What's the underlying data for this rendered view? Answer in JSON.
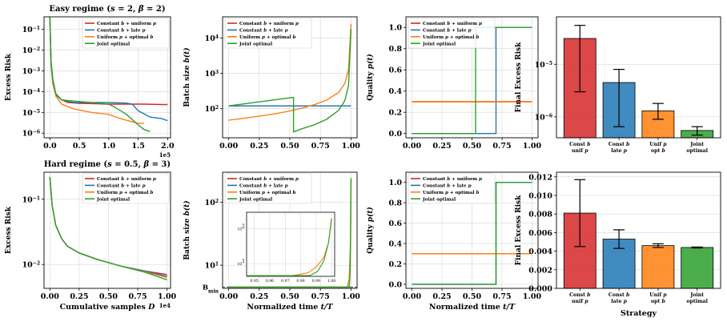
{
  "chart_data": [
    {
      "type": "line",
      "title": "Easy regime ($s=2$, $\\beta=2$)",
      "title_parts": [
        {
          "t": "Easy regime ("
        },
        {
          "t": "s",
          "i": true
        },
        {
          "t": " = 2, "
        },
        {
          "t": "β",
          "i": true
        },
        {
          "t": " = 2)"
        }
      ],
      "ylabel": "Excess Risk",
      "xlabel": "",
      "xlim": [
        -0.1,
        2.05
      ],
      "ylim": [
        6e-07,
        0.4
      ],
      "yscale": "log",
      "xticks": [
        0,
        0.5,
        1.0,
        1.5,
        2.0
      ],
      "xticklabels": [
        "0.0",
        "0.5",
        "1.0",
        "1.5",
        "2.0"
      ],
      "yticks": [
        1e-06,
        1e-05,
        0.0001,
        0.001,
        0.01,
        0.1
      ],
      "yticklabels": [
        "10^-6",
        "10^-5",
        "10^-4",
        "10^-3",
        "10^-2",
        "10^-1"
      ],
      "x_offset_label": "1e5",
      "legend_loc": "upper right",
      "series": [
        {
          "name": "Constant $b$ + uniform $p$",
          "color": "#d62728",
          "x": [
            0,
            0.02,
            0.05,
            0.1,
            0.2,
            0.3,
            0.5,
            0.8,
            1.0,
            1.3,
            1.6,
            1.9,
            2.0
          ],
          "values": [
            0.4,
            0.002,
            0.00025,
            7e-05,
            4e-05,
            3e-05,
            2.7e-05,
            2.6e-05,
            2.5e-05,
            2.5e-05,
            2.5e-05,
            2.4e-05,
            2.4e-05
          ]
        },
        {
          "name": "Constant $b$ + late $p$",
          "color": "#1f77b4",
          "x": [
            0,
            0.02,
            0.05,
            0.1,
            0.2,
            0.4,
            0.7,
            1.0,
            1.3,
            1.4,
            1.5,
            1.7,
            1.9,
            2.0
          ],
          "values": [
            0.4,
            0.002,
            0.00025,
            7e-05,
            4e-05,
            3e-05,
            3e-05,
            3e-05,
            2.8e-05,
            2.5e-05,
            1.2e-05,
            6e-06,
            5e-06,
            4e-06
          ]
        },
        {
          "name": "Uniform $p$ + optimal $b$",
          "color": "#ff7f0e",
          "x": [
            0,
            0.02,
            0.05,
            0.1,
            0.2,
            0.4,
            0.7,
            1.0,
            1.2,
            1.4,
            1.5,
            1.6
          ],
          "values": [
            0.4,
            0.003,
            0.0003,
            6e-05,
            2.5e-05,
            1.5e-05,
            1e-05,
            8e-06,
            5e-06,
            3.5e-06,
            3e-06,
            3e-06
          ]
        },
        {
          "name": "Joint optimal",
          "color": "#2ca02c",
          "x": [
            0,
            0.02,
            0.05,
            0.1,
            0.2,
            0.4,
            0.7,
            1.0,
            1.1,
            1.3,
            1.5,
            1.6,
            1.7
          ],
          "values": [
            0.4,
            0.003,
            0.0004,
            8e-05,
            4e-05,
            3.5e-05,
            3e-05,
            2.5e-05,
            1.8e-05,
            8e-06,
            2.5e-06,
            1.5e-06,
            1.2e-06
          ]
        }
      ]
    },
    {
      "type": "line",
      "ylabel": "Batch size $b(t)$",
      "xlabel": "",
      "xlim": [
        -0.05,
        1.05
      ],
      "ylim": [
        15,
        40000
      ],
      "yscale": "log",
      "xticks": [
        0,
        0.25,
        0.5,
        0.75,
        1.0
      ],
      "xticklabels": [
        "0.00",
        "0.25",
        "0.50",
        "0.75",
        "1.00"
      ],
      "yticks": [
        100,
        1000,
        10000
      ],
      "yticklabels": [
        "10^2",
        "10^3",
        "10^4"
      ],
      "legend_loc": "upper left",
      "series": [
        {
          "name": "Constant $b$ + uniform $p$",
          "color": "#d62728",
          "x": [
            0,
            1
          ],
          "values": [
            120,
            120
          ]
        },
        {
          "name": "Constant $b$ + late $p$",
          "color": "#1f77b4",
          "x": [
            0,
            1
          ],
          "values": [
            120,
            120
          ]
        },
        {
          "name": "Uniform $p$ + optimal $b$",
          "color": "#ff7f0e",
          "x": [
            0,
            0.1,
            0.2,
            0.3,
            0.4,
            0.5,
            0.6,
            0.7,
            0.8,
            0.9,
            0.95,
            0.98,
            1.0
          ],
          "values": [
            47,
            52,
            58,
            65,
            74,
            86,
            103,
            130,
            175,
            290,
            520,
            1300,
            25000
          ]
        },
        {
          "name": "Joint optimal",
          "color": "#2ca02c",
          "x": [
            0,
            0.53,
            0.53,
            0.6,
            0.7,
            0.8,
            0.9,
            0.95,
            0.98,
            1.0
          ],
          "values": [
            120,
            210,
            22,
            27,
            35,
            50,
            90,
            170,
            450,
            18000
          ]
        }
      ]
    },
    {
      "type": "line",
      "ylabel": "Quality $p(t)$",
      "xlabel": "",
      "xlim": [
        -0.05,
        1.05
      ],
      "ylim": [
        -0.04,
        1.1
      ],
      "xticks": [
        0,
        0.25,
        0.5,
        0.75,
        1.0
      ],
      "xticklabels": [
        "0.00",
        "0.25",
        "0.50",
        "0.75",
        "1.00"
      ],
      "yticks": [
        0,
        0.2,
        0.4,
        0.6,
        0.8,
        1.0
      ],
      "yticklabels": [
        "0.0",
        "0.2",
        "0.4",
        "0.6",
        "0.8",
        "1.0"
      ],
      "legend_loc": "upper left",
      "series": [
        {
          "name": "Constant $b$ + uniform $p$",
          "color": "#d62728",
          "x": [
            0,
            1
          ],
          "values": [
            0.3,
            0.3
          ]
        },
        {
          "name": "Constant $b$ + late $p$",
          "color": "#1f77b4",
          "x": [
            0,
            0.7,
            0.7,
            1.0
          ],
          "values": [
            0,
            0,
            1,
            1
          ]
        },
        {
          "name": "Uniform $p$ + optimal $b$",
          "color": "#ff7f0e",
          "x": [
            0,
            1
          ],
          "values": [
            0.3,
            0.3
          ]
        },
        {
          "name": "Joint optimal",
          "color": "#2ca02c",
          "x": [
            0,
            0.53,
            0.53,
            1.0
          ],
          "values": [
            0,
            0,
            1,
            1
          ]
        }
      ]
    },
    {
      "type": "bar",
      "ylabel": "Final Excess Risk",
      "xlabel": "",
      "yscale": "log",
      "ylim": [
        4e-07,
        8e-05
      ],
      "yticks": [
        1e-06,
        1e-05
      ],
      "yticklabels": [
        "10^-6",
        "10^-5"
      ],
      "categories": [
        "Const $b$\nunif $p$",
        "Const $b$\nlate $p$",
        "Unif $p$\nopt $b$",
        "Joint\noptimal"
      ],
      "values": [
        3.1e-05,
        4.5e-06,
        1.3e-06,
        5.5e-07
      ],
      "errors_low": [
        3e-06,
        6.5e-07,
        9e-07,
        4.5e-07
      ],
      "errors_high": [
        5.5e-05,
        8e-06,
        1.8e-06,
        6.5e-07
      ],
      "colors": [
        "#d62728",
        "#1f77b4",
        "#ff7f0e",
        "#2ca02c"
      ]
    },
    {
      "type": "line",
      "title": "Hard regime ($s=0.5$, $\\beta=3$)",
      "title_parts": [
        {
          "t": "Hard regime ("
        },
        {
          "t": "s",
          "i": true
        },
        {
          "t": " = 0.5, "
        },
        {
          "t": "β",
          "i": true
        },
        {
          "t": " = 3)"
        }
      ],
      "ylabel": "Excess Risk",
      "xlabel": "Cumulative samples $D$",
      "xlim": [
        -0.05,
        1.03
      ],
      "ylim": [
        0.0043,
        0.26
      ],
      "yscale": "log",
      "xticks": [
        0,
        0.25,
        0.5,
        0.75,
        1.0
      ],
      "xticklabels": [
        "0.00",
        "0.25",
        "0.50",
        "0.75",
        "1.00"
      ],
      "yticks": [
        0.01,
        0.1
      ],
      "yticklabels": [
        "10^-2",
        "10^-1"
      ],
      "x_offset_label": "1e4",
      "legend_loc": "upper right",
      "series": [
        {
          "name": "Constant $b$ + uniform $p$",
          "color": "#d62728",
          "x": [
            0,
            0.02,
            0.05,
            0.1,
            0.15,
            0.25,
            0.4,
            0.6,
            0.8,
            1.0
          ],
          "values": [
            0.22,
            0.08,
            0.04,
            0.025,
            0.019,
            0.015,
            0.012,
            0.0095,
            0.008,
            0.007
          ]
        },
        {
          "name": "Constant $b$ + late $p$",
          "color": "#1f77b4",
          "x": [
            0,
            0.02,
            0.05,
            0.1,
            0.15,
            0.25,
            0.4,
            0.6,
            0.8,
            1.0
          ],
          "values": [
            0.22,
            0.08,
            0.04,
            0.025,
            0.019,
            0.015,
            0.012,
            0.0095,
            0.008,
            0.0066
          ]
        },
        {
          "name": "Uniform $p$ + optimal $b$",
          "color": "#ff7f0e",
          "x": [
            0,
            0.02,
            0.05,
            0.1,
            0.15,
            0.25,
            0.4,
            0.6,
            0.8,
            1.0
          ],
          "values": [
            0.22,
            0.08,
            0.04,
            0.025,
            0.019,
            0.015,
            0.012,
            0.0095,
            0.0078,
            0.0063
          ]
        },
        {
          "name": "Joint optimal",
          "color": "#2ca02c",
          "x": [
            0,
            0.02,
            0.05,
            0.1,
            0.15,
            0.25,
            0.4,
            0.6,
            0.8,
            1.0
          ],
          "values": [
            0.22,
            0.08,
            0.04,
            0.025,
            0.019,
            0.015,
            0.012,
            0.0095,
            0.0077,
            0.0058
          ]
        }
      ]
    },
    {
      "type": "line",
      "ylabel": "Batch size $b(t)$",
      "xlabel": "Normalized time $t/T$",
      "xlim": [
        -0.05,
        1.05
      ],
      "ylim": [
        4.3,
        300
      ],
      "yscale": "log",
      "xticks": [
        0,
        0.25,
        0.5,
        0.75,
        1.0
      ],
      "xticklabels": [
        "0.00",
        "0.25",
        "0.50",
        "0.75",
        "1.00"
      ],
      "yticks": [
        10,
        100
      ],
      "yticklabels": [
        "10^1",
        "10^2"
      ],
      "extra_ytick_label": "B_min",
      "bmin": 4.5,
      "legend_loc": "upper left",
      "series": [
        {
          "name": "Constant $b$ + uniform $p$",
          "color": "#d62728",
          "x": [
            0,
            1
          ],
          "values": [
            4.5,
            4.5
          ]
        },
        {
          "name": "Constant $b$ + late $p$",
          "color": "#1f77b4",
          "x": [
            0,
            1
          ],
          "values": [
            4.5,
            4.5
          ]
        },
        {
          "name": "Uniform $p$ + optimal $b$",
          "color": "#ff7f0e",
          "x": [
            0,
            0.97,
            0.985,
            0.995,
            1.0
          ],
          "values": [
            4.5,
            4.5,
            6,
            20,
            240
          ]
        },
        {
          "name": "Joint optimal",
          "color": "#2ca02c",
          "x": [
            0,
            0.985,
            0.992,
            0.997,
            1.0
          ],
          "values": [
            4.5,
            4.5,
            7,
            30,
            240
          ]
        }
      ],
      "inset": {
        "xlim": [
          0.945,
          1.002
        ],
        "ylim": [
          4.3,
          300
        ],
        "yscale": "log",
        "xticks": [
          0.95,
          0.96,
          0.97,
          0.98,
          0.99,
          1.0
        ],
        "xticklabels": [
          "0.95",
          "0.96",
          "0.97",
          "0.98",
          "0.99",
          "1.00"
        ],
        "yticks": [
          10,
          100
        ],
        "yticklabels": [
          "10^1",
          "10^2"
        ],
        "series": [
          {
            "color": "#ff7f0e",
            "x": [
              0.945,
              0.975,
              0.985,
              0.99,
              0.995,
              0.998,
              1.0
            ],
            "values": [
              4.5,
              4.5,
              5.5,
              8,
              15,
              40,
              200
            ]
          },
          {
            "color": "#2ca02c",
            "x": [
              0.945,
              0.986,
              0.991,
              0.995,
              0.998,
              1.0
            ],
            "values": [
              4.5,
              4.5,
              6,
              12,
              40,
              200
            ]
          }
        ]
      }
    },
    {
      "type": "line",
      "ylabel": "Quality $p(t)$",
      "xlabel": "Normalized time $t/T$",
      "xlim": [
        -0.05,
        1.05
      ],
      "ylim": [
        -0.04,
        1.1
      ],
      "xticks": [
        0,
        0.25,
        0.5,
        0.75,
        1.0
      ],
      "xticklabels": [
        "0.00",
        "0.25",
        "0.50",
        "0.75",
        "1.00"
      ],
      "yticks": [
        0,
        0.2,
        0.4,
        0.6,
        0.8,
        1.0
      ],
      "yticklabels": [
        "0.0",
        "0.2",
        "0.4",
        "0.6",
        "0.8",
        "1.0"
      ],
      "legend_loc": "upper left",
      "series": [
        {
          "name": "Constant $b$ + uniform $p$",
          "color": "#d62728",
          "x": [
            0,
            1
          ],
          "values": [
            0.3,
            0.3
          ]
        },
        {
          "name": "Constant $b$ + late $p$",
          "color": "#1f77b4",
          "x": [
            0,
            0.7,
            0.7,
            1.0
          ],
          "values": [
            0,
            0,
            1,
            1
          ]
        },
        {
          "name": "Uniform $p$ + optimal $b$",
          "color": "#ff7f0e",
          "x": [
            0,
            1
          ],
          "values": [
            0.3,
            0.3
          ]
        },
        {
          "name": "Joint optimal",
          "color": "#2ca02c",
          "x": [
            0,
            0.7,
            0.7,
            1.0
          ],
          "values": [
            0,
            0,
            1,
            1
          ]
        }
      ]
    },
    {
      "type": "bar",
      "ylabel": "Final Excess Risk",
      "xlabel": "Strategy",
      "ylim": [
        0,
        0.0125
      ],
      "yticks": [
        0,
        0.002,
        0.004,
        0.006,
        0.008,
        0.01,
        0.012
      ],
      "yticklabels": [
        "0.000",
        "0.002",
        "0.004",
        "0.006",
        "0.008",
        "0.010",
        "0.012"
      ],
      "categories": [
        "Const $b$\nunif $p$",
        "Const $b$\nlate $p$",
        "Unif $p$\nopt $b$",
        "Joint\noptimal"
      ],
      "values": [
        0.0081,
        0.0053,
        0.0046,
        0.0044
      ],
      "errors_low": [
        0.0045,
        0.0043,
        0.0044,
        0.00435
      ],
      "errors_high": [
        0.0117,
        0.0063,
        0.0048,
        0.00445
      ],
      "colors": [
        "#d62728",
        "#1f77b4",
        "#ff7f0e",
        "#2ca02c"
      ]
    }
  ]
}
